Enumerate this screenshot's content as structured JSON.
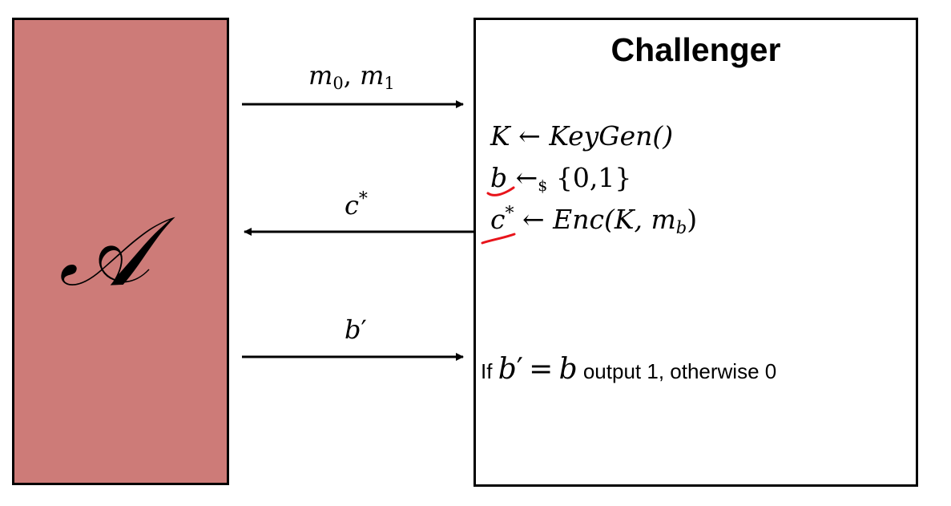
{
  "adversary": {
    "symbol": "𝒜",
    "fill_color": "#cd7b78"
  },
  "challenger": {
    "title": "Challenger",
    "steps": [
      {
        "lhs": "K",
        "arrow": "←",
        "rhs": "KeyGen()"
      },
      {
        "lhs": "b",
        "arrow": "←",
        "arrow_subscript": "$",
        "rhs": "{0,1}"
      },
      {
        "lhs": "c",
        "lhs_superscript": "*",
        "arrow": "←",
        "rhs_function": "Enc(K,",
        "rhs_var": "m",
        "rhs_var_subscript": "b",
        "rhs_close": ")"
      }
    ],
    "output": {
      "prefix": "If",
      "var_b": "b",
      "prime": "′",
      "equals": "=",
      "var_b2": "b",
      "suffix": "output 1, otherwise 0"
    }
  },
  "messages": {
    "challenge": {
      "m": "m",
      "sub0": "0",
      "comma": ",",
      "sub1": "1",
      "direction": "to-challenger"
    },
    "ciphertext": {
      "c": "c",
      "star": "*",
      "direction": "to-adversary"
    },
    "guess": {
      "b": "b",
      "prime": "′",
      "direction": "to-challenger"
    }
  },
  "annotation": {
    "underline_color": "#e8141b"
  }
}
